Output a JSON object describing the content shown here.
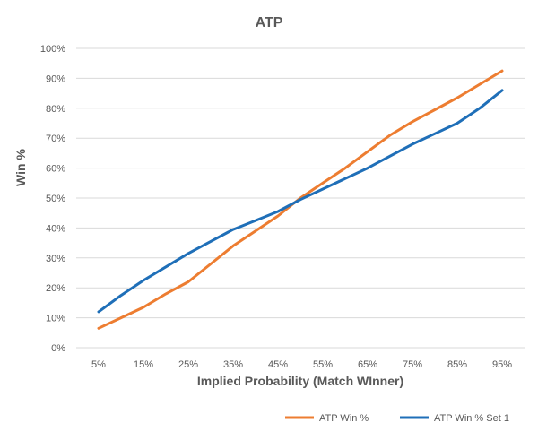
{
  "chart_data": {
    "type": "line",
    "title": "ATP",
    "xlabel": "Implied Probability (Match WInner)",
    "ylabel": "Win %",
    "x_tick_labels": [
      "5%",
      "15%",
      "25%",
      "35%",
      "45%",
      "55%",
      "65%",
      "75%",
      "85%",
      "95%"
    ],
    "y_tick_labels": [
      "0%",
      "10%",
      "20%",
      "30%",
      "40%",
      "50%",
      "60%",
      "70%",
      "80%",
      "90%",
      "100%"
    ],
    "xlim": [
      0,
      100
    ],
    "ylim": [
      0,
      100
    ],
    "grid": true,
    "legend_position": "bottom-right",
    "x": [
      5,
      10,
      15,
      20,
      25,
      30,
      35,
      40,
      45,
      50,
      55,
      60,
      65,
      70,
      75,
      80,
      85,
      90,
      95
    ],
    "series": [
      {
        "name": "ATP Win %",
        "color": "#ED7D31",
        "values": [
          6.5,
          10,
          13.5,
          18,
          22,
          28,
          34,
          39,
          44,
          50,
          55,
          60,
          65.5,
          71,
          75.5,
          79.5,
          83.5,
          88,
          92.5
        ]
      },
      {
        "name": "ATP Win % Set 1",
        "color": "#1F6FB8",
        "values": [
          12,
          17.5,
          22.5,
          27,
          31.5,
          35.5,
          39.5,
          42.5,
          45.5,
          49.5,
          53,
          56.5,
          60,
          64,
          68,
          71.5,
          75,
          80,
          86
        ]
      }
    ]
  }
}
